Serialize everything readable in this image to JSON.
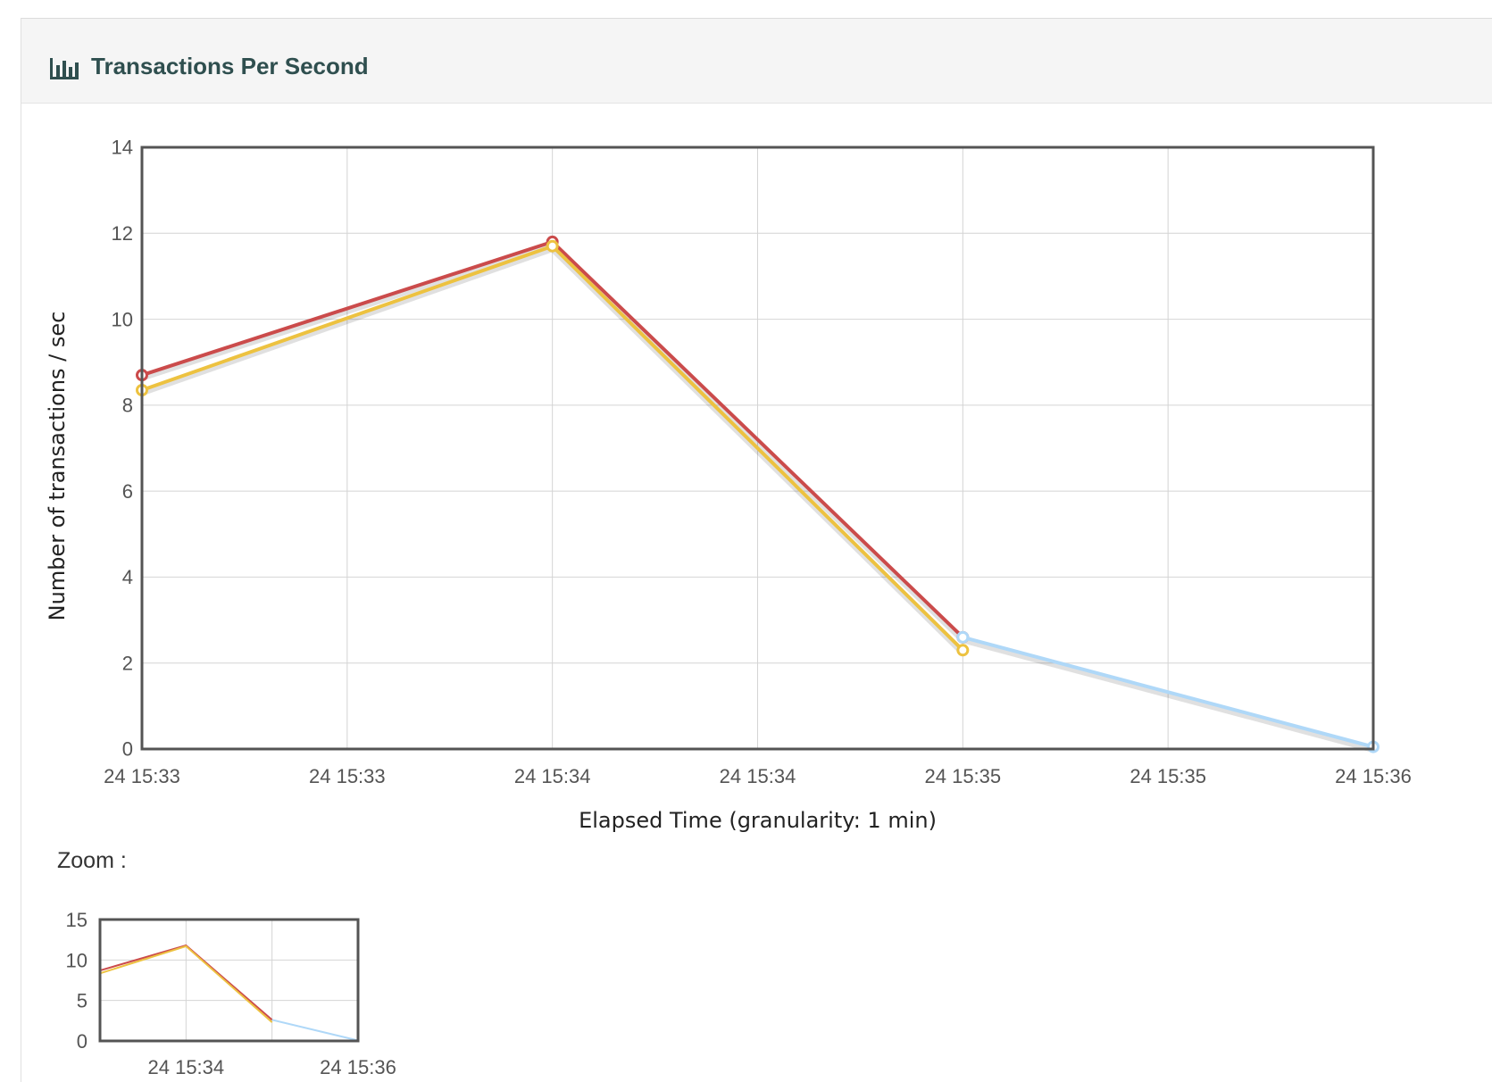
{
  "panel": {
    "title": "Transactions Per Second",
    "icon": "bar-chart-icon"
  },
  "zoom": {
    "label": "Zoom :"
  },
  "colors": {
    "series_red": "#cb4b4b",
    "series_yellow": "#edc240",
    "series_blue": "#afd8f8",
    "axis": "#545454",
    "grid": "#d4d4d4"
  },
  "chart_data": [
    {
      "type": "line",
      "xlabel": "Elapsed Time (granularity: 1 min)",
      "ylabel": "Number of transactions / sec",
      "ylim": [
        0,
        14
      ],
      "yticks": [
        0,
        2,
        4,
        6,
        8,
        10,
        12,
        14
      ],
      "xticks": [
        "24 15:33",
        "24 15:33",
        "24 15:34",
        "24 15:34",
        "24 15:35",
        "24 15:35",
        "24 15:36"
      ],
      "grid": true,
      "series": [
        {
          "x": [
            0,
            1,
            2
          ],
          "values": [
            8.7,
            11.8,
            2.6
          ],
          "color": "#cb4b4b"
        },
        {
          "x": [
            0,
            1,
            2
          ],
          "values": [
            8.35,
            11.7,
            2.3
          ],
          "color": "#edc240"
        },
        {
          "x": [
            2,
            3
          ],
          "values": [
            2.6,
            0.05
          ],
          "color": "#afd8f8"
        }
      ]
    },
    {
      "type": "line",
      "ylim": [
        0,
        15
      ],
      "yticks": [
        0,
        5,
        10,
        15
      ],
      "xticks": [
        "24 15:34",
        "24 15:36"
      ],
      "grid": true,
      "series": [
        {
          "x": [
            0,
            1,
            2
          ],
          "values": [
            8.7,
            11.8,
            2.6
          ],
          "color": "#cb4b4b"
        },
        {
          "x": [
            0,
            1,
            2
          ],
          "values": [
            8.35,
            11.7,
            2.3
          ],
          "color": "#edc240"
        },
        {
          "x": [
            2,
            3
          ],
          "values": [
            2.6,
            0.05
          ],
          "color": "#afd8f8"
        }
      ]
    }
  ]
}
